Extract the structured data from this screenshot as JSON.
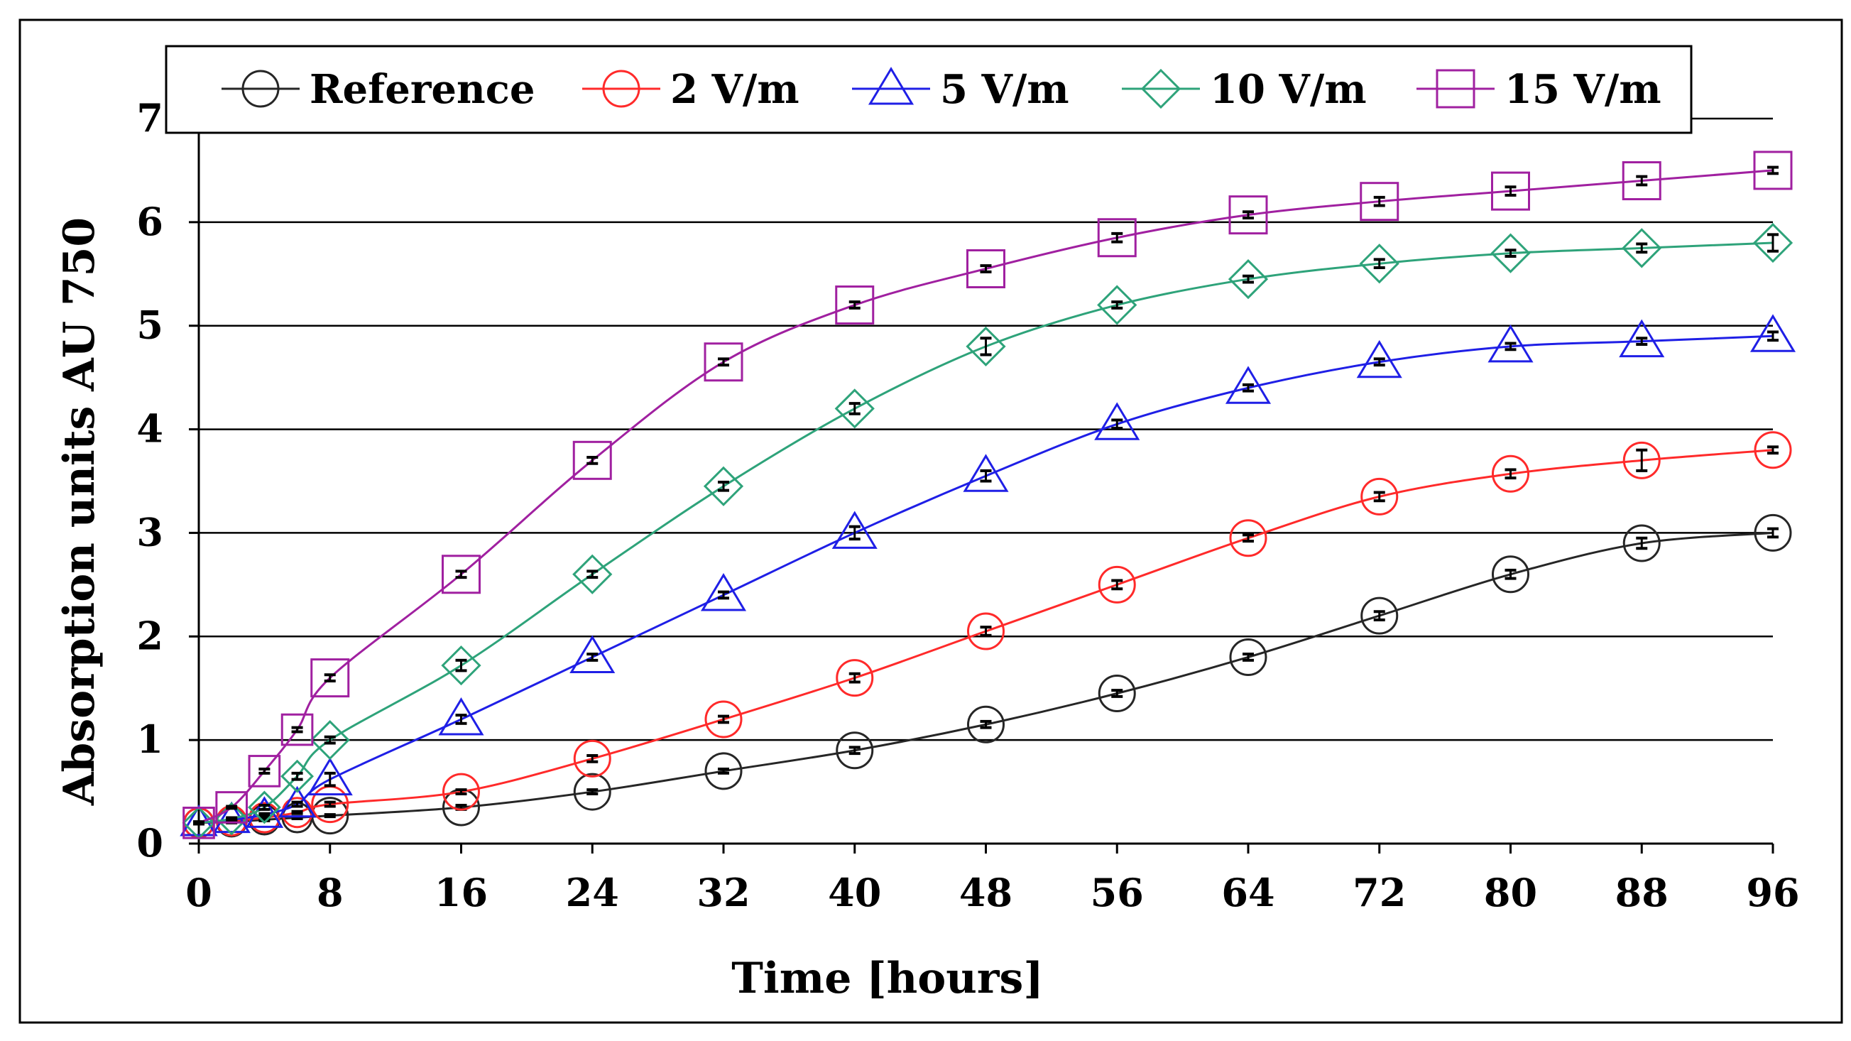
{
  "colors": {
    "reference": "#262626",
    "v2": "#ff2a2a",
    "v5": "#1f1fe6",
    "v10": "#2ea37a",
    "v15": "#a020a0",
    "grid": "#000000",
    "errorbar": "#000000"
  },
  "chart_data": {
    "type": "line",
    "title": "",
    "xlabel": "Time [hours]",
    "ylabel": "Absorption units AU 750",
    "xlim": [
      0,
      96
    ],
    "ylim": [
      0,
      7
    ],
    "xticks": [
      0,
      8,
      16,
      24,
      32,
      40,
      48,
      56,
      64,
      72,
      80,
      88,
      96
    ],
    "yticks": [
      0,
      1,
      2,
      3,
      4,
      5,
      6,
      7
    ],
    "grid": "horizontal",
    "legend_position": "top",
    "x": [
      0,
      2,
      4,
      6,
      8,
      16,
      24,
      32,
      40,
      48,
      56,
      64,
      72,
      80,
      88,
      96
    ],
    "series": [
      {
        "name": "Reference",
        "marker": "circle",
        "color_key": "reference",
        "values": [
          0.2,
          0.21,
          0.23,
          0.25,
          0.27,
          0.35,
          0.5,
          0.7,
          0.9,
          1.15,
          1.45,
          1.8,
          2.2,
          2.6,
          2.9,
          3.0
        ],
        "errors": [
          0.01,
          0.01,
          0.01,
          0.01,
          0.01,
          0.02,
          0.02,
          0.02,
          0.03,
          0.03,
          0.03,
          0.03,
          0.04,
          0.04,
          0.05,
          0.04
        ]
      },
      {
        "name": "2 V/m",
        "marker": "circle",
        "color_key": "v2",
        "values": [
          0.2,
          0.22,
          0.25,
          0.3,
          0.38,
          0.5,
          0.82,
          1.2,
          1.6,
          2.05,
          2.5,
          2.95,
          3.35,
          3.57,
          3.7,
          3.8
        ],
        "errors": [
          0.01,
          0.01,
          0.01,
          0.01,
          0.02,
          0.02,
          0.03,
          0.03,
          0.04,
          0.04,
          0.04,
          0.03,
          0.04,
          0.04,
          0.1,
          0.03
        ]
      },
      {
        "name": "5 V/m",
        "marker": "triangle",
        "color_key": "v5",
        "values": [
          0.2,
          0.23,
          0.28,
          0.38,
          0.62,
          1.2,
          1.8,
          2.4,
          3.0,
          3.55,
          4.05,
          4.4,
          4.65,
          4.8,
          4.85,
          4.9
        ],
        "errors": [
          0.01,
          0.01,
          0.01,
          0.02,
          0.06,
          0.04,
          0.03,
          0.03,
          0.06,
          0.05,
          0.04,
          0.03,
          0.03,
          0.03,
          0.03,
          0.04
        ]
      },
      {
        "name": "10 V/m",
        "marker": "diamond",
        "color_key": "v10",
        "values": [
          0.2,
          0.24,
          0.35,
          0.65,
          1.0,
          1.72,
          2.6,
          3.45,
          4.2,
          4.8,
          5.2,
          5.45,
          5.6,
          5.7,
          5.75,
          5.8
        ],
        "errors": [
          0.01,
          0.01,
          0.02,
          0.03,
          0.03,
          0.05,
          0.03,
          0.04,
          0.05,
          0.08,
          0.03,
          0.03,
          0.04,
          0.03,
          0.04,
          0.08
        ]
      },
      {
        "name": "15 V/m",
        "marker": "square",
        "color_key": "v15",
        "values": [
          0.2,
          0.35,
          0.7,
          1.1,
          1.6,
          2.6,
          3.7,
          4.65,
          5.2,
          5.55,
          5.85,
          6.07,
          6.2,
          6.3,
          6.4,
          6.5
        ],
        "errors": [
          0.01,
          0.01,
          0.02,
          0.02,
          0.03,
          0.03,
          0.03,
          0.03,
          0.03,
          0.03,
          0.04,
          0.03,
          0.04,
          0.04,
          0.04,
          0.03
        ]
      }
    ]
  }
}
